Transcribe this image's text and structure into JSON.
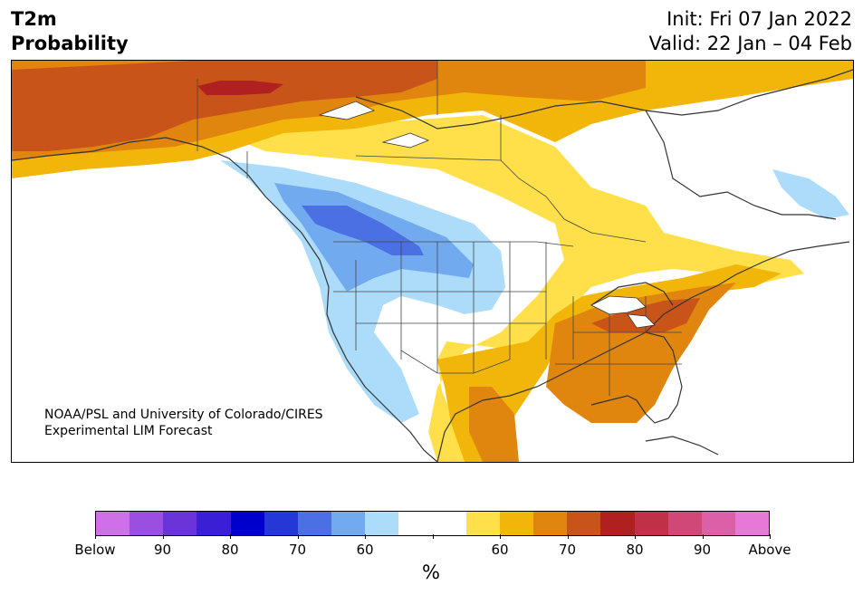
{
  "header": {
    "variable": "T2m",
    "product": "Probability",
    "init": "Init: Fri 07 Jan 2022",
    "valid": "Valid: 22 Jan – 04 Feb"
  },
  "credit": {
    "line1": "NOAA/PSL and University of Colorado/CIRES",
    "line2": "Experimental LIM Forecast"
  },
  "colorbar": {
    "colors": [
      "#d070e8",
      "#9b4fe0",
      "#6a34d8",
      "#3a1fd6",
      "#0000cc",
      "#2637d8",
      "#4a70e4",
      "#72aaf0",
      "#acdcfa",
      "#ffffff",
      "#ffffff",
      "#ffe04a",
      "#f2b60a",
      "#e0860e",
      "#c8541a",
      "#b02020",
      "#c03048",
      "#d04878",
      "#dc60a8",
      "#e678d8"
    ],
    "tick_labels": [
      "Below",
      "90",
      "80",
      "70",
      "60",
      "",
      "60",
      "70",
      "80",
      "90",
      "Above"
    ],
    "unit": "%"
  },
  "map": {
    "colors": {
      "land": "#ffffff",
      "ocean": "#ffffff",
      "border": "#333333",
      "cold_light": "#acdcfa",
      "cold_mid": "#72aaf0",
      "cold_strong": "#4a70e4",
      "warm_light": "#ffe04a",
      "warm_mid": "#f2b60a",
      "warm_strong": "#e0860e",
      "warm_vstrong": "#c8541a",
      "warm_extreme": "#b02020"
    }
  }
}
